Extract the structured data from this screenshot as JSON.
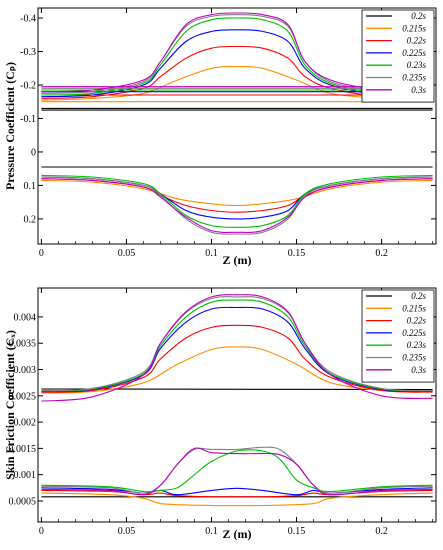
{
  "series_colors": [
    "#000000",
    "#ff8c00",
    "#ff0000",
    "#0000ff",
    "#00c000",
    "#808080",
    "#c000c0"
  ],
  "chart_data": [
    {
      "type": "line",
      "xlabel": "Z (m)",
      "ylabel": "Pressure Coefficient (Cₚ)",
      "xlim": [
        -0.002,
        0.232
      ],
      "ylim": [
        -0.43,
        0.275
      ],
      "y_inverted": true,
      "x_ticks": [
        "0",
        "0.05",
        "0.1",
        "0.15",
        "0.2"
      ],
      "y_ticks": [
        "-0.4",
        "-0.3",
        "-0.2",
        "-0.1",
        "0",
        "0.1",
        "0.2"
      ],
      "legend_position": "top-right",
      "series": [
        {
          "name": "0.2s",
          "upper": {
            "x": [
              0,
              0.23
            ],
            "y": [
              -0.125,
              -0.125
            ]
          },
          "upper2": {
            "x": [
              0,
              0.23
            ],
            "y": [
              -0.13,
              -0.13
            ]
          },
          "lower": {
            "x": [
              0,
              0.23
            ],
            "y": [
              0.045,
              0.045
            ]
          }
        },
        {
          "name": "0.215s",
          "upper": {
            "x": [
              0,
              0.03,
              0.06,
              0.08,
              0.1,
              0.115,
              0.13,
              0.15,
              0.17,
              0.2,
              0.23
            ],
            "y": [
              -0.155,
              -0.16,
              -0.175,
              -0.215,
              -0.25,
              -0.255,
              -0.25,
              -0.215,
              -0.175,
              -0.16,
              -0.155
            ]
          },
          "lower": {
            "x": [
              0,
              0.03,
              0.06,
              0.08,
              0.1,
              0.115,
              0.13,
              0.15,
              0.17,
              0.2,
              0.23
            ],
            "y": [
              0.085,
              0.09,
              0.11,
              0.14,
              0.155,
              0.16,
              0.155,
              0.14,
              0.11,
              0.09,
              0.085
            ]
          },
          "base": {
            "x": [
              0,
              0.23
            ],
            "y": [
              -0.15,
              -0.15
            ]
          }
        },
        {
          "name": "0.22s",
          "upper": {
            "x": [
              0,
              0.03,
              0.06,
              0.07,
              0.085,
              0.1,
              0.115,
              0.13,
              0.145,
              0.155,
              0.17,
              0.2,
              0.23
            ],
            "y": [
              -0.16,
              -0.165,
              -0.19,
              -0.225,
              -0.28,
              -0.31,
              -0.315,
              -0.31,
              -0.28,
              -0.225,
              -0.19,
              -0.165,
              -0.16
            ]
          },
          "lower": {
            "x": [
              0,
              0.03,
              0.06,
              0.07,
              0.085,
              0.1,
              0.115,
              0.13,
              0.145,
              0.155,
              0.17,
              0.2,
              0.23
            ],
            "y": [
              0.08,
              0.085,
              0.105,
              0.13,
              0.16,
              0.175,
              0.18,
              0.175,
              0.16,
              0.13,
              0.105,
              0.085,
              0.08
            ]
          },
          "base": {
            "x": [
              0,
              0.23
            ],
            "y": [
              -0.17,
              -0.17
            ]
          }
        },
        {
          "name": "0.225s",
          "upper": {
            "x": [
              0,
              0.03,
              0.06,
              0.07,
              0.085,
              0.1,
              0.115,
              0.13,
              0.145,
              0.155,
              0.17,
              0.2,
              0.23
            ],
            "y": [
              -0.165,
              -0.17,
              -0.2,
              -0.25,
              -0.33,
              -0.36,
              -0.365,
              -0.36,
              -0.33,
              -0.25,
              -0.2,
              -0.17,
              -0.165
            ]
          },
          "lower": {
            "x": [
              0,
              0.03,
              0.06,
              0.07,
              0.085,
              0.1,
              0.115,
              0.13,
              0.145,
              0.155,
              0.17,
              0.2,
              0.23
            ],
            "y": [
              0.075,
              0.08,
              0.1,
              0.125,
              0.175,
              0.195,
              0.2,
              0.195,
              0.175,
              0.125,
              0.1,
              0.08,
              0.075
            ]
          },
          "base": {
            "x": [
              0,
              0.23
            ],
            "y": [
              -0.18,
              -0.18
            ]
          }
        },
        {
          "name": "0.23s",
          "upper": {
            "x": [
              0,
              0.03,
              0.06,
              0.07,
              0.085,
              0.1,
              0.115,
              0.13,
              0.145,
              0.155,
              0.17,
              0.2,
              0.23
            ],
            "y": [
              -0.17,
              -0.175,
              -0.205,
              -0.26,
              -0.36,
              -0.395,
              -0.4,
              -0.395,
              -0.36,
              -0.26,
              -0.205,
              -0.175,
              -0.17
            ]
          },
          "lower": {
            "x": [
              0,
              0.03,
              0.06,
              0.07,
              0.085,
              0.1,
              0.115,
              0.13,
              0.145,
              0.155,
              0.17,
              0.2,
              0.23
            ],
            "y": [
              0.07,
              0.075,
              0.095,
              0.125,
              0.19,
              0.22,
              0.225,
              0.22,
              0.19,
              0.125,
              0.095,
              0.075,
              0.07
            ]
          },
          "base": {
            "x": [
              0,
              0.23
            ],
            "y": [
              -0.185,
              -0.185
            ]
          }
        },
        {
          "name": "0.235s",
          "upper": {
            "x": [
              0,
              0.03,
              0.06,
              0.07,
              0.085,
              0.1,
              0.115,
              0.13,
              0.145,
              0.155,
              0.17,
              0.2,
              0.23
            ],
            "y": [
              -0.175,
              -0.18,
              -0.21,
              -0.27,
              -0.375,
              -0.405,
              -0.41,
              -0.405,
              -0.375,
              -0.27,
              -0.21,
              -0.18,
              -0.175
            ]
          },
          "lower": {
            "x": [
              0,
              0.03,
              0.06,
              0.07,
              0.085,
              0.1,
              0.115,
              0.13,
              0.145,
              0.155,
              0.17,
              0.2,
              0.23
            ],
            "y": [
              0.075,
              0.08,
              0.1,
              0.13,
              0.2,
              0.24,
              0.245,
              0.24,
              0.2,
              0.13,
              0.1,
              0.08,
              0.075
            ]
          },
          "base": {
            "x": [
              0,
              0.23
            ],
            "y": [
              -0.19,
              -0.19
            ]
          }
        },
        {
          "name": "0.3s",
          "upper": {
            "x": [
              0,
              0.03,
              0.06,
              0.07,
              0.085,
              0.1,
              0.115,
              0.13,
              0.145,
              0.155,
              0.17,
              0.2,
              0.23
            ],
            "y": [
              -0.18,
              -0.185,
              -0.215,
              -0.27,
              -0.38,
              -0.41,
              -0.415,
              -0.41,
              -0.38,
              -0.27,
              -0.215,
              -0.185,
              -0.18
            ]
          },
          "lower": {
            "x": [
              0,
              0.03,
              0.06,
              0.07,
              0.085,
              0.1,
              0.115,
              0.13,
              0.145,
              0.155,
              0.17,
              0.2,
              0.23
            ],
            "y": [
              0.08,
              0.085,
              0.105,
              0.135,
              0.195,
              0.235,
              0.24,
              0.235,
              0.195,
              0.135,
              0.105,
              0.085,
              0.08
            ]
          },
          "base": {
            "x": [
              0,
              0.23
            ],
            "y": [
              -0.195,
              -0.195
            ]
          }
        }
      ]
    },
    {
      "type": "line",
      "xlabel": "Z (m)",
      "ylabel": "Skin Friction Coefficient (Cₓ)",
      "xlim": [
        -0.002,
        0.232
      ],
      "ylim": [
        0.0001,
        0.00455
      ],
      "x_ticks": [
        "0",
        "0.05",
        "0.1",
        "0.15",
        "0.2"
      ],
      "y_ticks": [
        "0.0005",
        "0.001",
        "0.0015",
        "0.002",
        "0.0025",
        "0.003",
        "0.0035",
        "0.004"
      ],
      "legend_position": "top-right",
      "series": [
        {
          "name": "0.2s",
          "upper": {
            "x": [
              0,
              0.23
            ],
            "y": [
              0.00263,
              0.00262
            ]
          },
          "lower": {
            "x": [
              0,
              0.23
            ],
            "y": [
              0.00058,
              0.00058
            ]
          }
        },
        {
          "name": "0.215s",
          "upper": {
            "x": [
              0,
              0.03,
              0.06,
              0.08,
              0.1,
              0.115,
              0.13,
              0.15,
              0.17,
              0.2,
              0.23
            ],
            "y": [
              0.00255,
              0.00258,
              0.00275,
              0.0031,
              0.00338,
              0.00343,
              0.00338,
              0.0031,
              0.00275,
              0.0026,
              0.00258
            ]
          },
          "lower": {
            "x": [
              0,
              0.04,
              0.06,
              0.07,
              0.09,
              0.115,
              0.14,
              0.16,
              0.17,
              0.2,
              0.23
            ],
            "y": [
              0.00065,
              0.00062,
              0.00055,
              0.00045,
              0.00042,
              0.00041,
              0.00042,
              0.00045,
              0.00055,
              0.00062,
              0.00065
            ]
          }
        },
        {
          "name": "0.22s",
          "upper": {
            "x": [
              0,
              0.03,
              0.06,
              0.07,
              0.085,
              0.1,
              0.115,
              0.13,
              0.145,
              0.155,
              0.17,
              0.2,
              0.23
            ],
            "y": [
              0.00257,
              0.0026,
              0.00285,
              0.0032,
              0.0036,
              0.0038,
              0.00384,
              0.0038,
              0.0036,
              0.0032,
              0.00285,
              0.0026,
              0.00257
            ]
          },
          "lower": {
            "x": [
              0,
              0.04,
              0.06,
              0.07,
              0.08,
              0.1,
              0.115,
              0.13,
              0.15,
              0.16,
              0.17,
              0.2,
              0.23
            ],
            "y": [
              0.0007,
              0.00068,
              0.00062,
              0.00065,
              0.0006,
              0.00058,
              0.00058,
              0.00058,
              0.0006,
              0.00065,
              0.00062,
              0.00068,
              0.0007
            ]
          }
        },
        {
          "name": "0.225s",
          "upper": {
            "x": [
              0,
              0.03,
              0.06,
              0.07,
              0.085,
              0.1,
              0.115,
              0.13,
              0.145,
              0.155,
              0.17,
              0.2,
              0.23
            ],
            "y": [
              0.00258,
              0.00262,
              0.0029,
              0.0034,
              0.0039,
              0.00415,
              0.00418,
              0.00415,
              0.0039,
              0.0034,
              0.0029,
              0.00262,
              0.00258
            ]
          },
          "lower": {
            "x": [
              0,
              0.04,
              0.06,
              0.07,
              0.08,
              0.1,
              0.115,
              0.13,
              0.15,
              0.16,
              0.17,
              0.2,
              0.23
            ],
            "y": [
              0.00075,
              0.00072,
              0.00065,
              0.0007,
              0.00062,
              0.0007,
              0.00074,
              0.0007,
              0.00062,
              0.0007,
              0.00065,
              0.00072,
              0.00075
            ]
          }
        },
        {
          "name": "0.23s",
          "upper": {
            "x": [
              0,
              0.03,
              0.06,
              0.07,
              0.085,
              0.1,
              0.115,
              0.13,
              0.145,
              0.155,
              0.17,
              0.2,
              0.23
            ],
            "y": [
              0.00259,
              0.00263,
              0.00292,
              0.00345,
              0.004,
              0.00428,
              0.00432,
              0.00428,
              0.004,
              0.00345,
              0.00292,
              0.00263,
              0.00259
            ]
          },
          "lower": {
            "x": [
              0,
              0.04,
              0.06,
              0.07,
              0.08,
              0.09,
              0.1,
              0.115,
              0.13,
              0.14,
              0.15,
              0.16,
              0.17,
              0.2,
              0.23
            ],
            "y": [
              0.0008,
              0.00077,
              0.00068,
              0.0007,
              0.00075,
              0.001,
              0.00125,
              0.00145,
              0.00145,
              0.0013,
              0.0009,
              0.00075,
              0.00068,
              0.00077,
              0.0008
            ]
          }
        },
        {
          "name": "0.235s",
          "upper": {
            "x": [
              0,
              0.03,
              0.06,
              0.07,
              0.085,
              0.1,
              0.115,
              0.13,
              0.145,
              0.155,
              0.17,
              0.2,
              0.23
            ],
            "y": [
              0.0026,
              0.00264,
              0.00295,
              0.0035,
              0.00408,
              0.00435,
              0.00438,
              0.00435,
              0.00408,
              0.0035,
              0.00295,
              0.00264,
              0.0026
            ]
          },
          "lower": {
            "x": [
              0,
              0.04,
              0.06,
              0.07,
              0.08,
              0.09,
              0.1,
              0.115,
              0.13,
              0.14,
              0.15,
              0.16,
              0.17,
              0.2,
              0.23
            ],
            "y": [
              0.00078,
              0.00075,
              0.00065,
              0.0008,
              0.0012,
              0.00148,
              0.00148,
              0.00148,
              0.00152,
              0.00148,
              0.0012,
              0.0008,
              0.00065,
              0.00075,
              0.00078
            ]
          }
        },
        {
          "name": "0.3s",
          "upper": {
            "x": [
              0,
              0.03,
              0.06,
              0.07,
              0.085,
              0.1,
              0.115,
              0.13,
              0.145,
              0.155,
              0.17,
              0.2,
              0.23
            ],
            "y": [
              0.0024,
              0.00248,
              0.0029,
              0.0035,
              0.0041,
              0.00438,
              0.00442,
              0.00438,
              0.0041,
              0.0035,
              0.0029,
              0.0025,
              0.00245
            ]
          },
          "lower": {
            "x": [
              0,
              0.04,
              0.06,
              0.07,
              0.08,
              0.09,
              0.1,
              0.115,
              0.13,
              0.14,
              0.15,
              0.16,
              0.17,
              0.2,
              0.23
            ],
            "y": [
              0.00072,
              0.0007,
              0.00062,
              0.0008,
              0.0012,
              0.0015,
              0.00142,
              0.0014,
              0.0014,
              0.00138,
              0.0012,
              0.0008,
              0.00062,
              0.0007,
              0.00072
            ]
          }
        }
      ]
    }
  ]
}
